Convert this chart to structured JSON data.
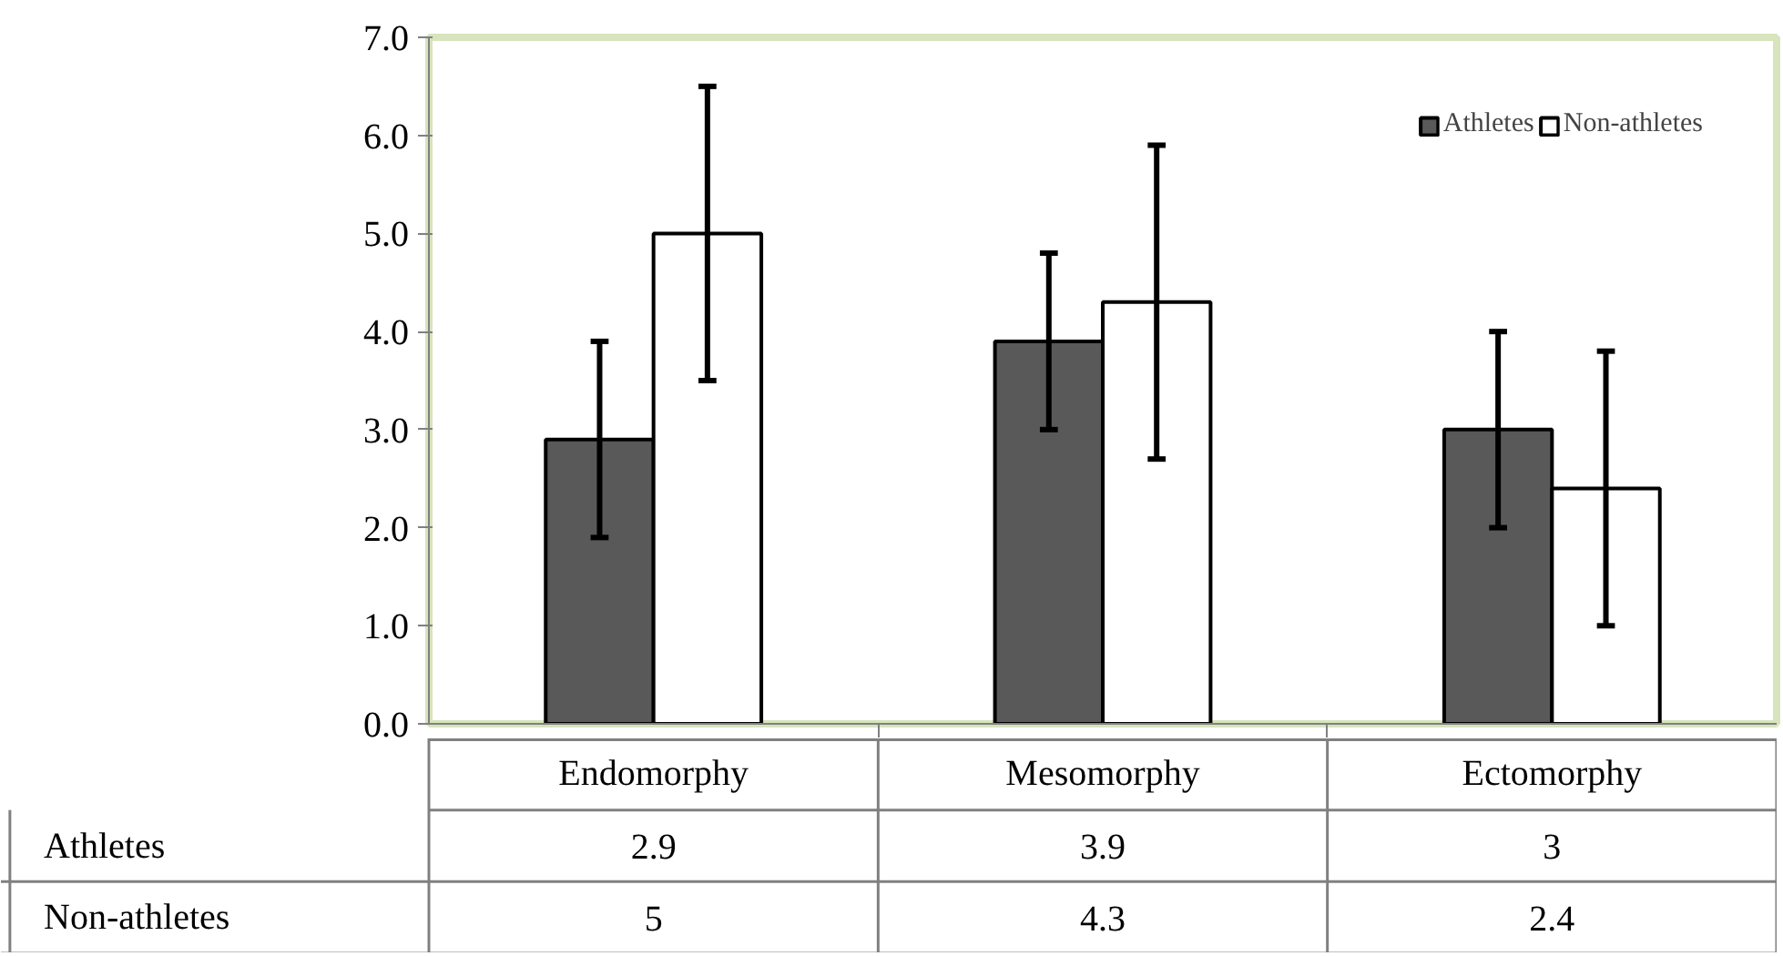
{
  "chart_data": {
    "type": "bar",
    "categories": [
      "Endomorphy",
      "Mesomorphy",
      "Ectomorphy"
    ],
    "series": [
      {
        "name": "Athletes",
        "color": "#595959",
        "values": [
          2.9,
          3.9,
          3
        ],
        "errors": [
          1.0,
          0.9,
          1.0
        ]
      },
      {
        "name": "Non-athletes",
        "color": "#ffffff",
        "values": [
          5,
          4.3,
          2.4
        ],
        "errors": [
          1.5,
          1.6,
          1.4
        ]
      }
    ],
    "ylim": [
      0,
      7
    ],
    "yticks": [
      {
        "value": 0,
        "label": "0.0"
      },
      {
        "value": 1,
        "label": "1.0"
      },
      {
        "value": 2,
        "label": "2.0"
      },
      {
        "value": 3,
        "label": "3.0"
      },
      {
        "value": 4,
        "label": "4.0"
      },
      {
        "value": 5,
        "label": "5.0"
      },
      {
        "value": 6,
        "label": "6.0"
      },
      {
        "value": 7,
        "label": "7.0"
      }
    ],
    "legend": "top right",
    "grid": false,
    "data_labels": true
  }
}
